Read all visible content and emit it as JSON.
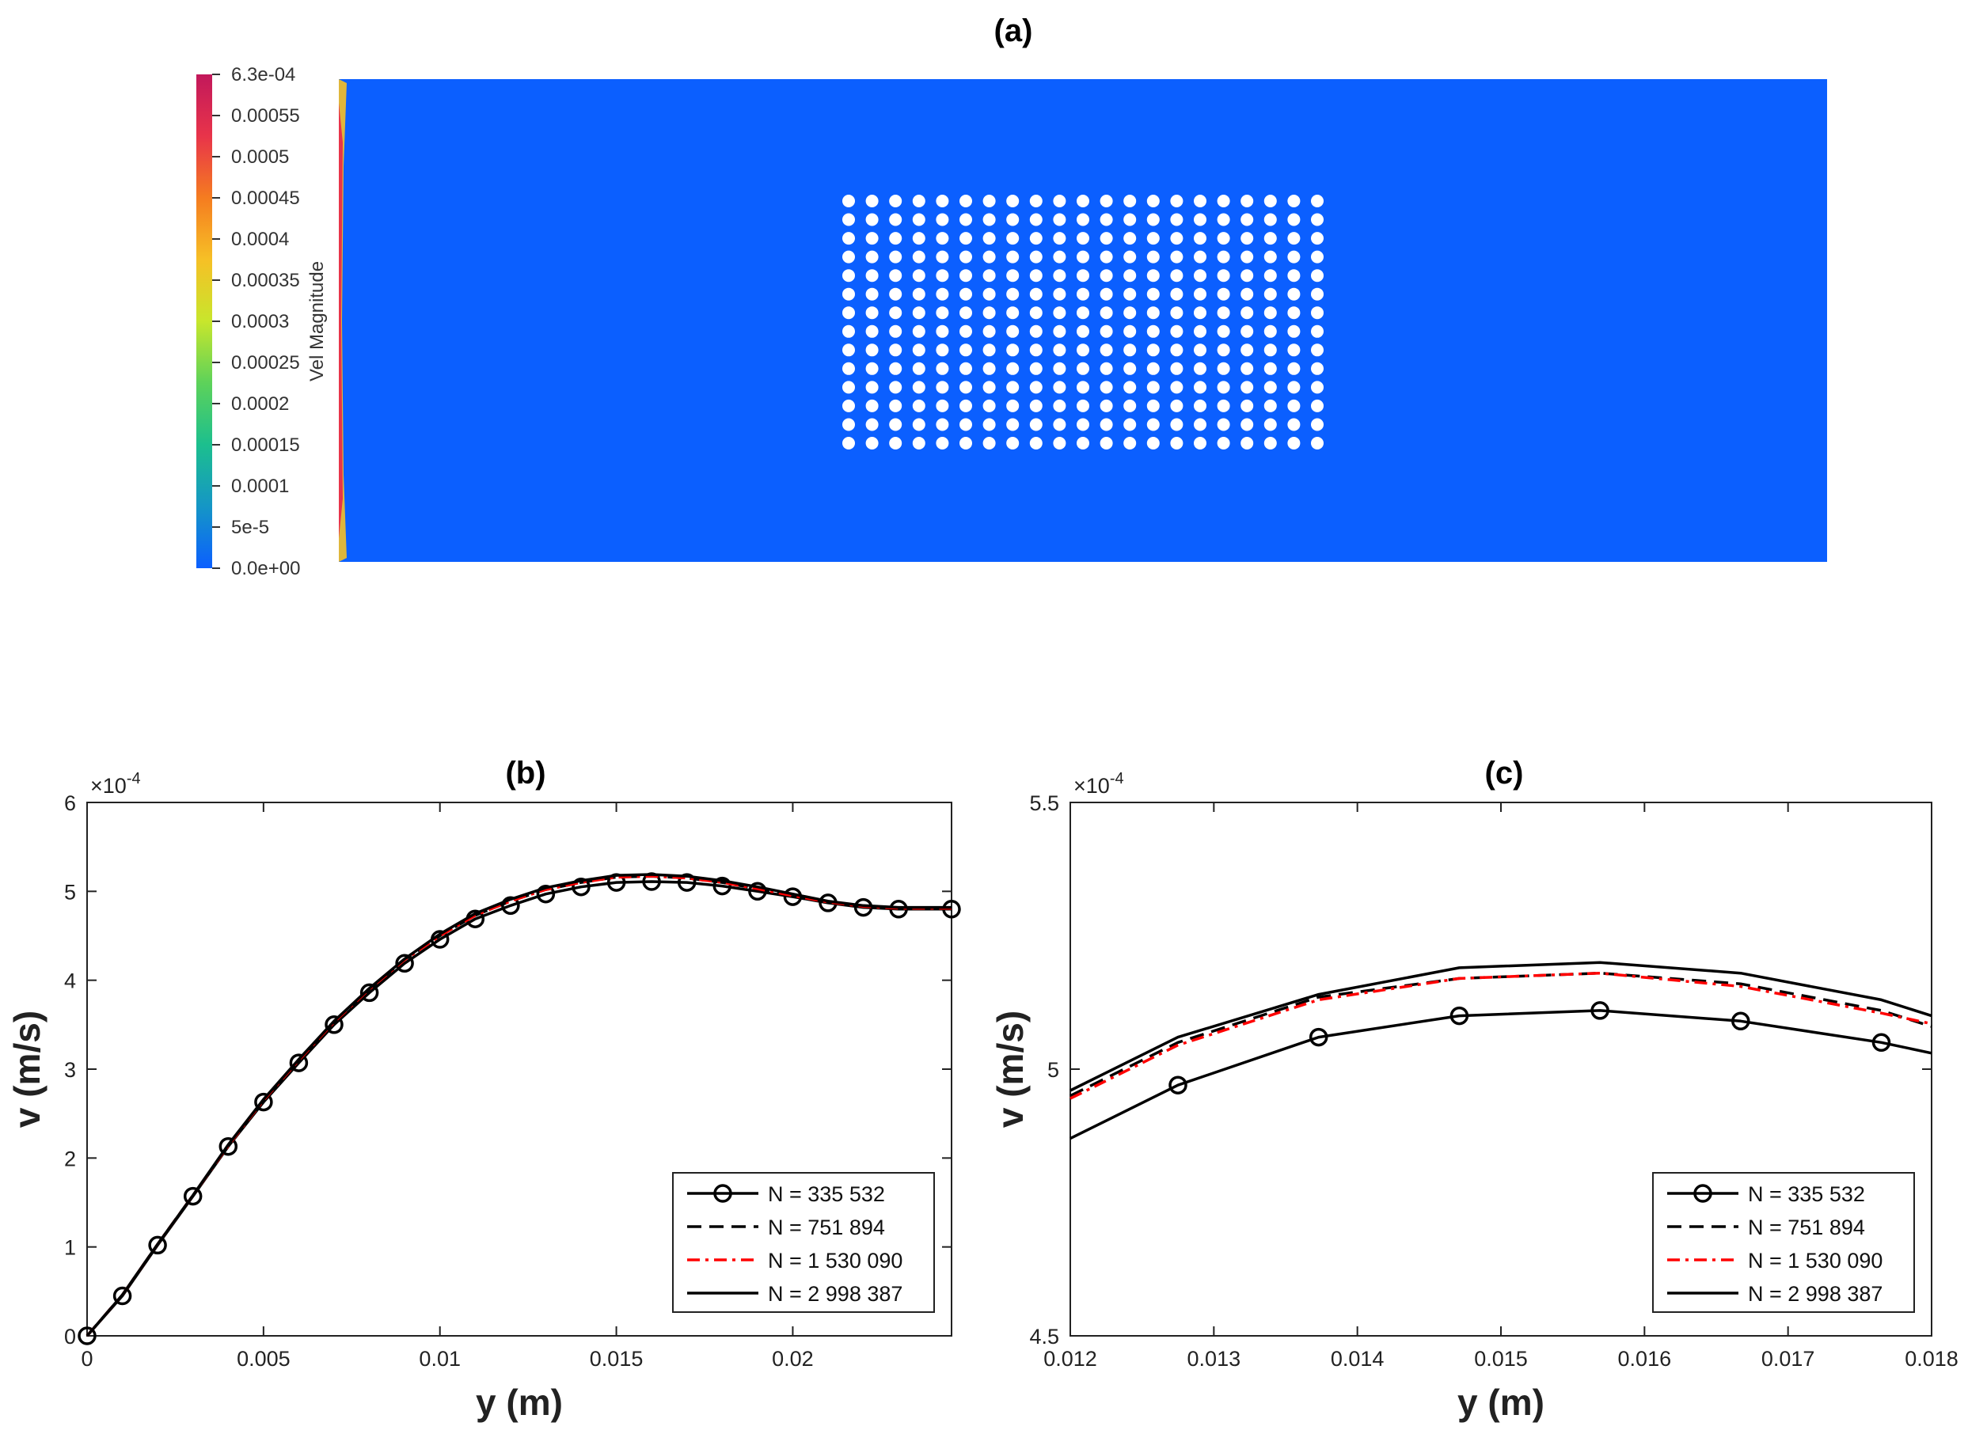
{
  "figure": {
    "panel_a_title": "(a)",
    "panel_b_title": "(b)",
    "panel_c_title": "(c)"
  },
  "colorbar": {
    "label": "Vel Magnitude",
    "ticks": [
      "6.3e-04",
      "0.00055",
      "0.0005",
      "0.00045",
      "0.0004",
      "0.00035",
      "0.0003",
      "0.00025",
      "0.0002",
      "0.00015",
      "0.0001",
      "5e-5",
      "0.0e+00"
    ],
    "colors": [
      "#c2185b",
      "#e8344a",
      "#f57c20",
      "#f6c026",
      "#c8e62c",
      "#5dd25a",
      "#1cbf8e",
      "#1596c6",
      "#0b5fff"
    ]
  },
  "contour": {
    "background_color": "#0b5fff",
    "obstacle_color": "#ffffff",
    "obstacle_rows": 14,
    "obstacle_cols": 21
  },
  "chart_data": [
    {
      "type": "line",
      "title": "(b)",
      "xlabel": "y (m)",
      "ylabel": "v (m/s)",
      "y_exponent": "×10^-4",
      "xlim": [
        0,
        0.0245
      ],
      "ylim": [
        0,
        6
      ],
      "xticks": [
        "0",
        "0.005",
        "0.01",
        "0.015",
        "0.02"
      ],
      "yticks": [
        "0",
        "1",
        "2",
        "3",
        "4",
        "5",
        "6"
      ],
      "legend_position": "bottom-right",
      "series": [
        {
          "name": "N = 335 532",
          "color": "#000000",
          "dash": "",
          "marker": "circle",
          "x": [
            0,
            0.001,
            0.002,
            0.003,
            0.004,
            0.005,
            0.006,
            0.007,
            0.008,
            0.009,
            0.01,
            0.011,
            0.012,
            0.013,
            0.014,
            0.015,
            0.016,
            0.017,
            0.018,
            0.019,
            0.02,
            0.021,
            0.022,
            0.023,
            0.0245
          ],
          "y": [
            0,
            0.45,
            1.02,
            1.57,
            2.13,
            2.63,
            3.07,
            3.5,
            3.86,
            4.19,
            4.46,
            4.69,
            4.84,
            4.97,
            5.05,
            5.1,
            5.11,
            5.1,
            5.06,
            5.0,
            4.94,
            4.87,
            4.82,
            4.8,
            4.8
          ]
        },
        {
          "name": "N = 751 894",
          "color": "#000000",
          "dash": "18,10",
          "marker": "",
          "x": [
            0,
            0.001,
            0.002,
            0.003,
            0.004,
            0.005,
            0.006,
            0.007,
            0.008,
            0.009,
            0.01,
            0.011,
            0.012,
            0.013,
            0.014,
            0.015,
            0.016,
            0.017,
            0.018,
            0.019,
            0.02,
            0.021,
            0.022,
            0.023,
            0.0245
          ],
          "y": [
            0,
            0.46,
            1.03,
            1.58,
            2.14,
            2.65,
            3.1,
            3.53,
            3.9,
            4.23,
            4.5,
            4.73,
            4.89,
            5.02,
            5.1,
            5.16,
            5.17,
            5.15,
            5.1,
            5.03,
            4.95,
            4.88,
            4.83,
            4.81,
            4.81
          ]
        },
        {
          "name": "N = 1 530 090",
          "color": "#ff0000",
          "dash": "16,7,4,7",
          "marker": "",
          "x": [
            0,
            0.001,
            0.002,
            0.003,
            0.004,
            0.005,
            0.006,
            0.007,
            0.008,
            0.009,
            0.01,
            0.011,
            0.012,
            0.013,
            0.014,
            0.015,
            0.016,
            0.017,
            0.018,
            0.019,
            0.02,
            0.021,
            0.022,
            0.023,
            0.0245
          ],
          "y": [
            0,
            0.46,
            1.03,
            1.58,
            2.14,
            2.65,
            3.1,
            3.53,
            3.9,
            4.23,
            4.5,
            4.73,
            4.89,
            5.02,
            5.1,
            5.16,
            5.17,
            5.15,
            5.1,
            5.03,
            4.95,
            4.88,
            4.83,
            4.81,
            4.81
          ]
        },
        {
          "name": "N = 2 998 387",
          "color": "#000000",
          "dash": "",
          "marker": "",
          "x": [
            0,
            0.001,
            0.002,
            0.003,
            0.004,
            0.005,
            0.006,
            0.007,
            0.008,
            0.009,
            0.01,
            0.011,
            0.012,
            0.013,
            0.014,
            0.015,
            0.016,
            0.017,
            0.018,
            0.019,
            0.02,
            0.021,
            0.022,
            0.023,
            0.0245
          ],
          "y": [
            0,
            0.46,
            1.03,
            1.58,
            2.15,
            2.66,
            3.11,
            3.54,
            3.91,
            4.24,
            4.52,
            4.75,
            4.91,
            5.04,
            5.12,
            5.18,
            5.19,
            5.17,
            5.12,
            5.05,
            4.97,
            4.89,
            4.84,
            4.82,
            4.82
          ]
        }
      ]
    },
    {
      "type": "line",
      "title": "(c)",
      "xlabel": "y (m)",
      "ylabel": "v (m/s)",
      "y_exponent": "×10^-4",
      "xlim": [
        0.012,
        0.018
      ],
      "ylim": [
        4.5,
        5.5
      ],
      "xticks": [
        "0.012",
        "0.013",
        "0.014",
        "0.015",
        "0.016",
        "0.017",
        "0.018"
      ],
      "yticks": [
        "4.5",
        "5",
        "5.5"
      ],
      "legend_position": "bottom-right",
      "series": [
        {
          "name": "N = 335 532",
          "color": "#000000",
          "dash": "",
          "marker": "circle",
          "x": [
            0.012,
            0.01275,
            0.01373,
            0.01471,
            0.01569,
            0.01667,
            0.01765,
            0.018
          ],
          "y": [
            4.87,
            4.97,
            5.06,
            5.1,
            5.11,
            5.09,
            5.05,
            5.03
          ]
        },
        {
          "name": "N = 751 894",
          "color": "#000000",
          "dash": "18,10",
          "marker": "",
          "x": [
            0.012,
            0.01275,
            0.01373,
            0.01471,
            0.01569,
            0.01667,
            0.01765,
            0.018
          ],
          "y": [
            4.95,
            5.05,
            5.135,
            5.17,
            5.18,
            5.16,
            5.11,
            5.08
          ]
        },
        {
          "name": "N = 1 530 090",
          "color": "#ff0000",
          "dash": "16,7,4,7",
          "marker": "",
          "x": [
            0.012,
            0.01275,
            0.01373,
            0.01471,
            0.01569,
            0.01667,
            0.01765,
            0.018
          ],
          "y": [
            4.945,
            5.045,
            5.13,
            5.17,
            5.18,
            5.155,
            5.105,
            5.085
          ]
        },
        {
          "name": "N = 2 998 387",
          "color": "#000000",
          "dash": "",
          "marker": "",
          "x": [
            0.012,
            0.01275,
            0.01373,
            0.01471,
            0.01569,
            0.01667,
            0.01765,
            0.018
          ],
          "y": [
            4.96,
            5.06,
            5.14,
            5.19,
            5.2,
            5.18,
            5.13,
            5.1
          ]
        }
      ]
    }
  ]
}
